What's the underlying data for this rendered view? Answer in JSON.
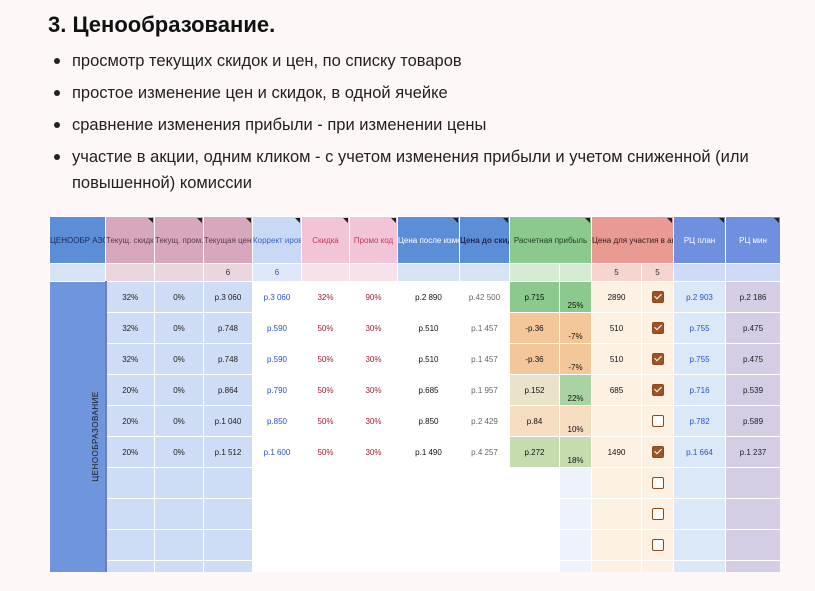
{
  "heading": "3. Ценообразование.",
  "bullets": [
    "просмотр текущих скидок и цен, по списку товаров",
    "простое изменение цен и скидок, в одной ячейке",
    "сравнение изменения прибыли - при изменении цены",
    "участие в акции, одним кликом - с учетом изменения прибыли и учетом сниженной (или повышенной) комиссии"
  ],
  "sheet": {
    "side_label": "ЦЕНООБРАЗОВАНИЕ",
    "headers": {
      "pricing": "ЦЕНООБР АЗОВАНИЕ",
      "cur_discount": "Текущ. скидка",
      "cur_promo": "Текущ. пром.",
      "cur_price": "Текущая цена",
      "correction": "Коррект ировка цены",
      "discount": "Скидка",
      "promo_code": "Промо код",
      "price_after": "Цена после изменений",
      "price_before": "Цена до скидки",
      "calc_profit": "Расчетная прибыль",
      "promo_price": "Цена для участия в акции",
      "rrp_plan": "РЦ план",
      "rrp_min": "РЦ мин"
    },
    "sub": {
      "cur_price": "6",
      "correction": "6",
      "promo_a": "5",
      "promo_b": "5"
    },
    "rows": [
      {
        "d": "32%",
        "p": "0%",
        "cur": "р.3 060",
        "corr": "р.3 060",
        "disc": "32%",
        "promo": "90%",
        "after": "р.2 890",
        "before": "р.42 500",
        "profit": "р.715",
        "pct": "25%",
        "promo_price": "2890",
        "checked": true,
        "plan": "р.2 903",
        "min": "р.2 186"
      },
      {
        "d": "32%",
        "p": "0%",
        "cur": "р.748",
        "corr": "р.590",
        "disc": "50%",
        "promo": "30%",
        "after": "р.510",
        "before": "р.1 457",
        "profit": "-р.36",
        "pct": "-7%",
        "promo_price": "510",
        "checked": true,
        "plan": "р.755",
        "min": "р.475"
      },
      {
        "d": "32%",
        "p": "0%",
        "cur": "р.748",
        "corr": "р.590",
        "disc": "50%",
        "promo": "30%",
        "after": "р.510",
        "before": "р.1 457",
        "profit": "-р.36",
        "pct": "-7%",
        "promo_price": "510",
        "checked": true,
        "plan": "р.755",
        "min": "р.475"
      },
      {
        "d": "20%",
        "p": "0%",
        "cur": "р.864",
        "corr": "р.790",
        "disc": "50%",
        "promo": "30%",
        "after": "р.685",
        "before": "р.1 957",
        "profit": "р.152",
        "pct": "22%",
        "promo_price": "685",
        "checked": true,
        "plan": "р.716",
        "min": "р.539"
      },
      {
        "d": "20%",
        "p": "0%",
        "cur": "р.1 040",
        "corr": "р.850",
        "disc": "50%",
        "promo": "30%",
        "after": "р.850",
        "before": "р.2 429",
        "profit": "р.84",
        "pct": "10%",
        "promo_price": "",
        "checked": false,
        "plan": "р.782",
        "min": "р.589"
      },
      {
        "d": "20%",
        "p": "0%",
        "cur": "р.1 512",
        "corr": "р.1 600",
        "disc": "50%",
        "promo": "30%",
        "after": "р.1 490",
        "before": "р.4 257",
        "profit": "р.272",
        "pct": "18%",
        "promo_price": "1490",
        "checked": true,
        "plan": "р.1 664",
        "min": "р.1 237"
      }
    ],
    "profit_colors": [
      "#8cc98e",
      "#f3c79a",
      "#f3c79a",
      "#e9e3c9",
      "#f6dcc0",
      "#c7dcae"
    ],
    "pct_colors": [
      "#8cc98e",
      "#f3c79a",
      "#f3c79a",
      "#a9d3a2",
      "#f6dcc0",
      "#c7dcae"
    ]
  }
}
